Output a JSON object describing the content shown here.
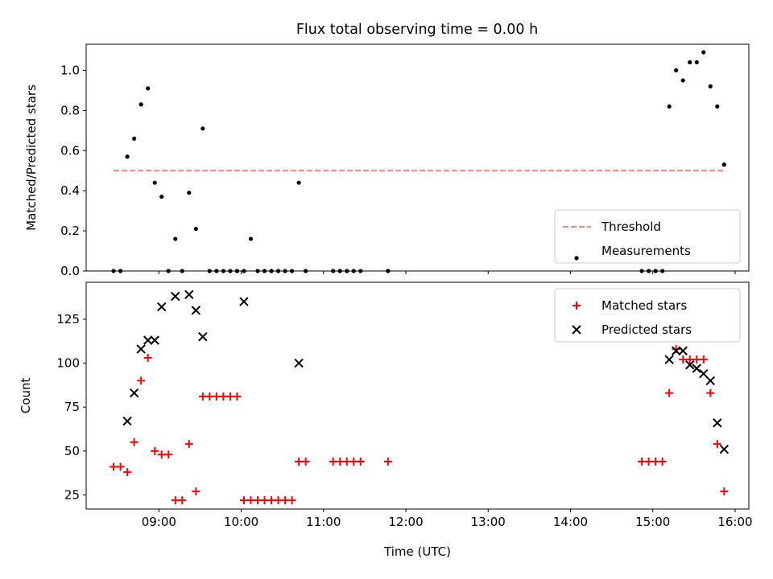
{
  "figure": {
    "title": "Flux total observing time = 0.00 h"
  },
  "chart_data": [
    {
      "type": "scatter",
      "ylabel": "Matched/Predicted stars",
      "xlabel": "",
      "xlim": [
        "08:07",
        "16:10"
      ],
      "ylim": [
        0,
        1.13
      ],
      "x_ticks": [
        "09:00",
        "10:00",
        "11:00",
        "12:00",
        "13:00",
        "14:00",
        "15:00",
        "16:00"
      ],
      "y_ticks": [
        0.0,
        0.2,
        0.4,
        0.6,
        0.8,
        1.0
      ],
      "y_tick_labels": [
        "0.0",
        "0.2",
        "0.4",
        "0.6",
        "0.8",
        "1.0"
      ],
      "legend_position": "lower-right",
      "series": [
        {
          "name": "Threshold",
          "kind": "line",
          "style": "dashed",
          "color": "#ff7f7f",
          "x": [
            "08:27",
            "15:53"
          ],
          "y": [
            0.5,
            0.5
          ]
        },
        {
          "name": "Measurements",
          "kind": "scatter",
          "marker": "dot",
          "color": "#000000",
          "x": [
            "08:27",
            "08:32",
            "08:37",
            "08:42",
            "08:47",
            "08:52",
            "08:57",
            "09:02",
            "09:07",
            "09:12",
            "09:17",
            "09:22",
            "09:27",
            "09:32",
            "09:37",
            "09:42",
            "09:47",
            "09:52",
            "09:57",
            "10:02",
            "10:07",
            "10:12",
            "10:17",
            "10:22",
            "10:27",
            "10:32",
            "10:37",
            "10:42",
            "10:47",
            "11:07",
            "11:12",
            "11:17",
            "11:22",
            "11:27",
            "11:47",
            "14:52",
            "14:57",
            "15:02",
            "15:07",
            "15:12",
            "15:17",
            "15:22",
            "15:27",
            "15:32",
            "15:37",
            "15:42",
            "15:47",
            "15:52"
          ],
          "y": [
            0.0,
            0.0,
            0.57,
            0.66,
            0.83,
            0.91,
            0.44,
            0.37,
            0.0,
            0.16,
            0.0,
            0.39,
            0.21,
            0.71,
            0.0,
            0.0,
            0.0,
            0.0,
            0.0,
            0.0,
            0.16,
            0.0,
            0.0,
            0.0,
            0.0,
            0.0,
            0.0,
            0.44,
            0.0,
            0.0,
            0.0,
            0.0,
            0.0,
            0.0,
            0.0,
            0.0,
            0.0,
            0.0,
            0.0,
            0.82,
            1.0,
            0.95,
            1.04,
            1.04,
            1.09,
            0.92,
            0.82,
            0.53
          ]
        }
      ]
    },
    {
      "type": "scatter",
      "ylabel": "Count",
      "xlabel": "Time (UTC)",
      "xlim": [
        "08:07",
        "16:10"
      ],
      "ylim": [
        17,
        146
      ],
      "x_ticks": [
        "09:00",
        "10:00",
        "11:00",
        "12:00",
        "13:00",
        "14:00",
        "15:00",
        "16:00"
      ],
      "y_ticks": [
        25,
        50,
        75,
        100,
        125
      ],
      "y_tick_labels": [
        "25",
        "50",
        "75",
        "100",
        "125"
      ],
      "legend_position": "upper-right",
      "series": [
        {
          "name": "Matched stars",
          "kind": "scatter",
          "marker": "plus",
          "color": "#ff0000",
          "x": [
            "08:27",
            "08:32",
            "08:37",
            "08:42",
            "08:47",
            "08:52",
            "08:57",
            "09:02",
            "09:07",
            "09:12",
            "09:17",
            "09:22",
            "09:27",
            "09:32",
            "09:37",
            "09:42",
            "09:47",
            "09:52",
            "09:57",
            "10:02",
            "10:07",
            "10:12",
            "10:17",
            "10:22",
            "10:27",
            "10:32",
            "10:37",
            "10:42",
            "10:47",
            "11:07",
            "11:12",
            "11:17",
            "11:22",
            "11:27",
            "11:47",
            "14:52",
            "14:57",
            "15:02",
            "15:07",
            "15:12",
            "15:17",
            "15:22",
            "15:27",
            "15:32",
            "15:37",
            "15:42",
            "15:47",
            "15:52"
          ],
          "y": [
            41,
            41,
            38,
            55,
            90,
            103,
            50,
            48,
            48,
            22,
            22,
            54,
            27,
            81,
            81,
            81,
            81,
            81,
            81,
            22,
            22,
            22,
            22,
            22,
            22,
            22,
            22,
            44,
            44,
            44,
            44,
            44,
            44,
            44,
            44,
            44,
            44,
            44,
            44,
            83,
            108,
            102,
            102,
            102,
            102,
            83,
            54,
            27
          ]
        },
        {
          "name": "Predicted stars",
          "kind": "scatter",
          "marker": "x",
          "color": "#000000",
          "x": [
            "08:37",
            "08:42",
            "08:47",
            "08:52",
            "08:57",
            "09:02",
            "09:12",
            "09:22",
            "09:27",
            "09:32",
            "10:02",
            "10:42",
            "15:12",
            "15:17",
            "15:22",
            "15:27",
            "15:32",
            "15:37",
            "15:42",
            "15:47",
            "15:52"
          ],
          "y": [
            67,
            83,
            108,
            113,
            113,
            132,
            138,
            139,
            130,
            115,
            135,
            100,
            102,
            107,
            107,
            99,
            97,
            94,
            90,
            66,
            51
          ]
        }
      ]
    }
  ]
}
